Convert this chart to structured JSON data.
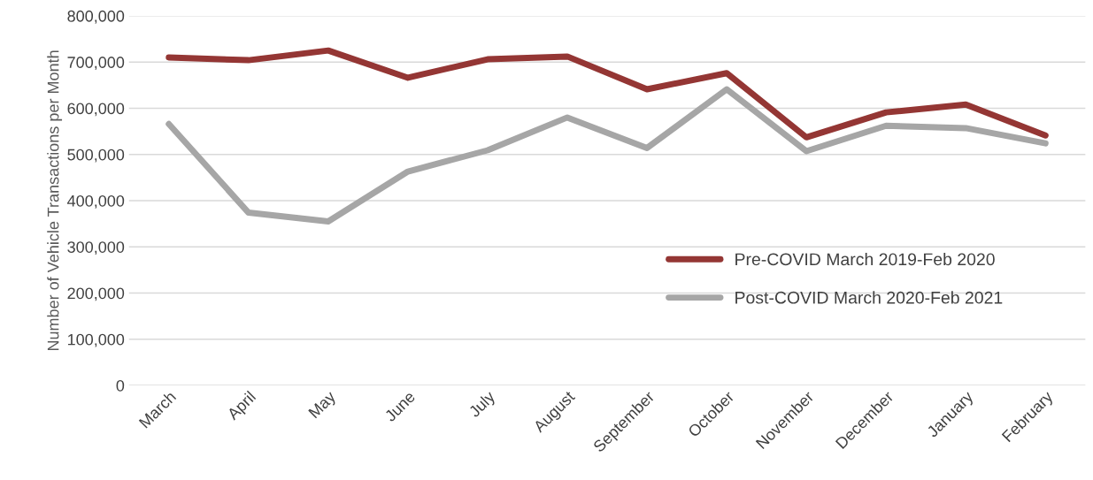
{
  "chart_data": {
    "type": "line",
    "ylabel": "Number of Vehicle Transactions per Month",
    "categories": [
      "March",
      "April",
      "May",
      "June",
      "July",
      "August",
      "September",
      "October",
      "November",
      "December",
      "January",
      "February"
    ],
    "series": [
      {
        "name": "Pre-COVID March 2019-Feb 2020",
        "color": "#943634",
        "values": [
          710000,
          704000,
          725000,
          666000,
          706000,
          712000,
          641000,
          676000,
          537000,
          591000,
          608000,
          541000
        ]
      },
      {
        "name": "Post-COVID March 2020-Feb 2021",
        "color": "#a6a6a6",
        "values": [
          566000,
          374000,
          355000,
          463000,
          509000,
          580000,
          514000,
          641000,
          507000,
          562000,
          557000,
          524000
        ]
      }
    ],
    "ylim": [
      0,
      800000
    ],
    "yticks": [
      {
        "value": 0,
        "label": "0"
      },
      {
        "value": 100000,
        "label": "100,000"
      },
      {
        "value": 200000,
        "label": "200,000"
      },
      {
        "value": 300000,
        "label": "300,000"
      },
      {
        "value": 400000,
        "label": "400,000"
      },
      {
        "value": 500000,
        "label": "500,000"
      },
      {
        "value": 600000,
        "label": "600,000"
      },
      {
        "value": 700000,
        "label": "700,000"
      },
      {
        "value": 800000,
        "label": "800,000"
      }
    ],
    "grid": "y",
    "legend": "bottom right",
    "marker": "none",
    "line_style": "solid"
  }
}
